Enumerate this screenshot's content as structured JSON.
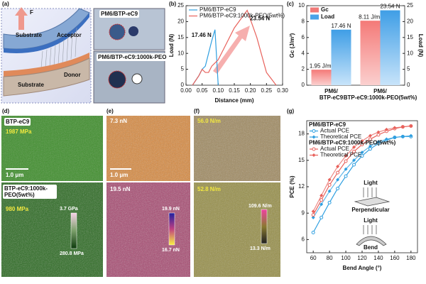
{
  "panels": {
    "a": {
      "label": "(a)",
      "force": "F",
      "substrate_top": "Substrate",
      "acceptor": "Acceptor",
      "substrate_bottom": "Substrate",
      "donor": "Donor",
      "photo_top": "PM6/BTP-eC9",
      "photo_bottom": "PM6/BTP-eC9:1000k-PEO"
    },
    "d": {
      "label": "(d)",
      "top_title": "BTP-eC9",
      "top_value": "1987 MPa",
      "scale": "1.0 μm",
      "bottom_title": "BTP-eC9:1000k-PEO(5wt%)",
      "bottom_value": "980 MPa",
      "bar_max": "3.7 GPa",
      "bar_min": "280.8 MPa"
    },
    "e": {
      "label": "(e)",
      "top_value": "7.3 nN",
      "scale": "1.0 μm",
      "bottom_value": "19.5 nN",
      "bar_max": "19.9 nN",
      "bar_min": "16.7 nN"
    },
    "f": {
      "label": "(f)",
      "top_value": "56.0 N/m",
      "bottom_value": "52.8 N/m",
      "bar_max": "109.6 N/m",
      "bar_min": "13.3 N/m"
    }
  },
  "chart_data": [
    {
      "type": "line",
      "label": "(b)",
      "x_label": "Distance (mm)",
      "y_label": "Load (N)",
      "x": [
        0.02,
        0.04,
        0.05,
        0.06,
        0.07,
        0.08,
        0.09,
        0.1,
        0.12,
        0.15,
        0.19,
        0.22,
        0.25,
        0.28
      ],
      "series": [
        {
          "name": "PM6/BTP-eC9",
          "color": "#2f9fe0",
          "values": [
            0,
            3,
            5,
            6,
            10,
            14,
            17.46,
            0,
            null,
            null,
            null,
            null,
            null,
            null
          ],
          "peak_label": "17.46 N"
        },
        {
          "name": "PM6/BTP-eC9:1000k-PEO(5wt%)",
          "color": "#e8625c",
          "values": [
            0,
            3,
            5,
            4,
            4,
            6,
            7,
            8,
            12,
            18,
            23.54,
            15,
            4,
            0
          ],
          "peak_label": "23.54 N"
        }
      ],
      "xlim": [
        0,
        0.3
      ],
      "xticks": [
        {
          "value": 0,
          "label": "0.00"
        },
        0.05,
        {
          "value": 0.1,
          "label": "0.10"
        },
        0.15,
        {
          "value": 0.2,
          "label": "0.20"
        },
        0.25,
        {
          "value": 0.3,
          "label": "0.30"
        }
      ],
      "ylim": [
        0,
        25
      ],
      "yticks": [
        0,
        5,
        10,
        15,
        20,
        25
      ],
      "legend": "upper left"
    },
    {
      "type": "bar",
      "label": "(c)",
      "y_label": "Gc (J/m²)",
      "y2_label": "Load (N)",
      "categories": [
        "PM6/BTP-eC9",
        "PM6/BTP-eC9:1000k-PEO(5wt%)"
      ],
      "series": [
        {
          "name": "Gc",
          "color": "#f07a78",
          "values": [
            1.95,
            8.11
          ],
          "value_labels": [
            "1.95 J/m²",
            "8.11 J/m²"
          ]
        },
        {
          "name": "Load",
          "color": "#4aa3e8",
          "values": [
            17.46,
            23.54
          ],
          "value_labels": [
            "17.46 N",
            "23.54 N"
          ],
          "axis": "y2"
        }
      ],
      "ylim": [
        0,
        10
      ],
      "yticks": [
        0,
        2,
        4,
        6,
        8,
        10
      ],
      "y2lim": [
        0,
        25
      ],
      "y2ticks": [
        0,
        5,
        10,
        15,
        20,
        25
      ],
      "legend": "upper left"
    },
    {
      "type": "line",
      "label": "(g)",
      "x_label": "Bend Angle (°)",
      "y_label": "PCE (%)",
      "x": [
        60,
        70,
        80,
        90,
        100,
        110,
        120,
        130,
        140,
        150,
        160,
        170,
        180
      ],
      "groups": [
        {
          "name": "PM6/BTP-eC9",
          "color": "#2f9fe0",
          "series": [
            {
              "name": "Actual PCE",
              "marker": "circle",
              "values": [
                6.8,
                8.5,
                10.2,
                11.8,
                13.2,
                14.5,
                15.5,
                16.3,
                16.9,
                17.3,
                17.6,
                17.7,
                17.7
              ]
            },
            {
              "name": "Theoretical PCE",
              "marker": "diamond",
              "values": [
                8.5,
                10,
                11.5,
                12.8,
                14,
                15,
                15.9,
                16.6,
                17.1,
                17.4,
                17.6,
                17.7,
                17.8
              ]
            }
          ]
        },
        {
          "name": "PM6/BTP-eC9:1000k-PEO(5wt%)",
          "color": "#e8625c",
          "series": [
            {
              "name": "Actual PCE",
              "marker": "circle",
              "values": [
                8.8,
                10.5,
                12.2,
                13.6,
                14.9,
                16,
                16.8,
                17.4,
                17.9,
                18.3,
                18.6,
                18.8,
                18.9
              ]
            },
            {
              "name": "Theoretical PCE",
              "marker": "diamond",
              "values": [
                9.2,
                11,
                12.8,
                14.3,
                15.5,
                16.5,
                17.2,
                17.8,
                18.2,
                18.5,
                18.7,
                18.8,
                18.9
              ]
            }
          ]
        }
      ],
      "xlim": [
        52,
        188
      ],
      "xticks": [
        60,
        80,
        100,
        120,
        140,
        160,
        180
      ],
      "ylim": [
        4.5,
        19.5
      ],
      "yticks": [
        6,
        9,
        12,
        15,
        18
      ],
      "annotations": [
        "Light",
        "Perpendicular",
        "Light",
        "Bend"
      ],
      "legend": "upper left"
    }
  ]
}
